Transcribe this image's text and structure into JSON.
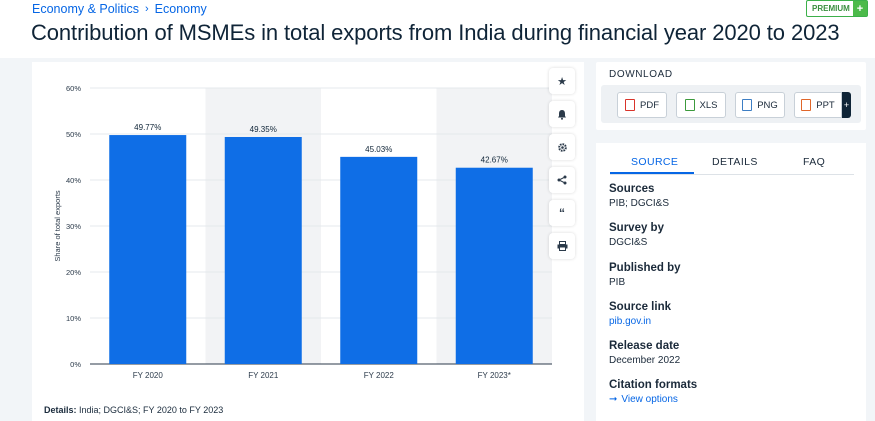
{
  "breadcrumb": {
    "items": [
      "Economy & Politics",
      "Economy"
    ],
    "separator": "›"
  },
  "premium": {
    "label": "PREMIUM",
    "plus": "+"
  },
  "page": {
    "title": "Contribution of MSMEs in total exports from India during financial year 2020 to 2023"
  },
  "chart_data": {
    "type": "bar",
    "categories": [
      "FY 2020",
      "FY 2021",
      "FY 2022",
      "FY 2023*"
    ],
    "values": [
      49.77,
      49.35,
      45.03,
      42.67
    ],
    "data_labels": [
      "49.77%",
      "49.35%",
      "45.03%",
      "42.67%"
    ],
    "ylabel": "Share of total exports",
    "ylim": [
      0,
      60
    ],
    "yticks": [
      "0%",
      "10%",
      "20%",
      "30%",
      "40%",
      "50%",
      "60%"
    ],
    "bar_color": "#0f6ee6",
    "grid": true
  },
  "details": {
    "label": "Details:",
    "text": "India; DGCI&S; FY 2020 to FY 2023"
  },
  "toolbar": [
    "star-icon",
    "bell-icon",
    "gear-icon",
    "share-icon",
    "quote-icon",
    "print-icon"
  ],
  "download": {
    "title": "DOWNLOAD",
    "buttons": [
      {
        "label": "PDF",
        "color": "#d9342b"
      },
      {
        "label": "XLS",
        "color": "#3c9a3c"
      },
      {
        "label": "PNG",
        "color": "#3d7ec4"
      },
      {
        "label": "PPT",
        "color": "#e0662a"
      }
    ],
    "more": "+"
  },
  "tabs": {
    "items": [
      "SOURCE",
      "DETAILS",
      "FAQ"
    ],
    "active": "SOURCE"
  },
  "source": {
    "sources_label": "Sources",
    "sources_value": "PIB; DGCI&S",
    "survey_label": "Survey by",
    "survey_value": "DGCI&S",
    "published_label": "Published by",
    "published_value": "PIB",
    "link_label": "Source link",
    "link_value": "pib.gov.in",
    "release_label": "Release date",
    "release_value": "December 2022",
    "citation_label": "Citation formats",
    "citation_value": "View options"
  },
  "colors": {
    "accent": "#0666e5",
    "bar": "#0f6ee6",
    "band": "#f2f3f5"
  }
}
